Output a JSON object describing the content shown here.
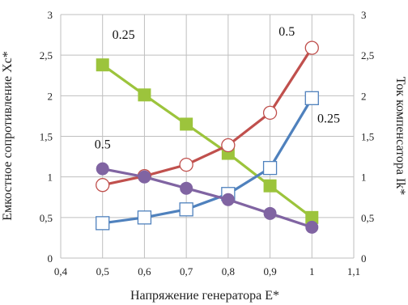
{
  "chart_data": {
    "type": "line",
    "xlabel": "Напряжение генератора Е*",
    "ylabel_left": "Емкостное сопротивление Хс*",
    "ylabel_right": "Ток компенсатора Ik*",
    "xlim": [
      0.4,
      1.1
    ],
    "ylim": [
      0,
      3
    ],
    "grid": true,
    "x_ticks": [
      "0,4",
      "0,5",
      "0,6",
      "0,7",
      "0,8",
      "0,9",
      "1",
      "1,1"
    ],
    "y_ticks_left": [
      "0",
      "0,5",
      "1",
      "1,5",
      "2",
      "2,5",
      "3"
    ],
    "y_ticks_right": [
      "0",
      "0,5",
      "1",
      "1,5",
      "2",
      "2,5",
      "3"
    ],
    "series": [
      {
        "color": "#9cc43c",
        "marker": "square-filled",
        "x": [
          0.5,
          0.6,
          0.7,
          0.8,
          0.9,
          1.0
        ],
        "values": [
          2.38,
          2.01,
          1.65,
          1.29,
          0.89,
          0.5
        ]
      },
      {
        "color": "#c0504d",
        "marker": "circle-open",
        "x": [
          0.5,
          0.6,
          0.7,
          0.8,
          0.9,
          1.0
        ],
        "values": [
          0.9,
          1.01,
          1.15,
          1.39,
          1.79,
          2.59
        ]
      },
      {
        "color": "#4f81bd",
        "marker": "square-open",
        "x": [
          0.5,
          0.6,
          0.7,
          0.8,
          0.9,
          1.0
        ],
        "values": [
          0.43,
          0.5,
          0.6,
          0.79,
          1.11,
          1.97
        ]
      },
      {
        "color": "#8064a2",
        "marker": "circle-filled",
        "x": [
          0.5,
          0.6,
          0.7,
          0.8,
          0.9,
          1.0
        ],
        "values": [
          1.1,
          1.0,
          0.86,
          0.72,
          0.55,
          0.38
        ]
      }
    ],
    "annotations": [
      {
        "text": "0.25",
        "x": 0.55,
        "y": 2.7
      },
      {
        "text": "0.5",
        "x": 0.94,
        "y": 2.74
      },
      {
        "text": "0.5",
        "x": 0.5,
        "y": 1.35
      },
      {
        "text": "0.25",
        "x": 1.04,
        "y": 1.67
      }
    ]
  }
}
